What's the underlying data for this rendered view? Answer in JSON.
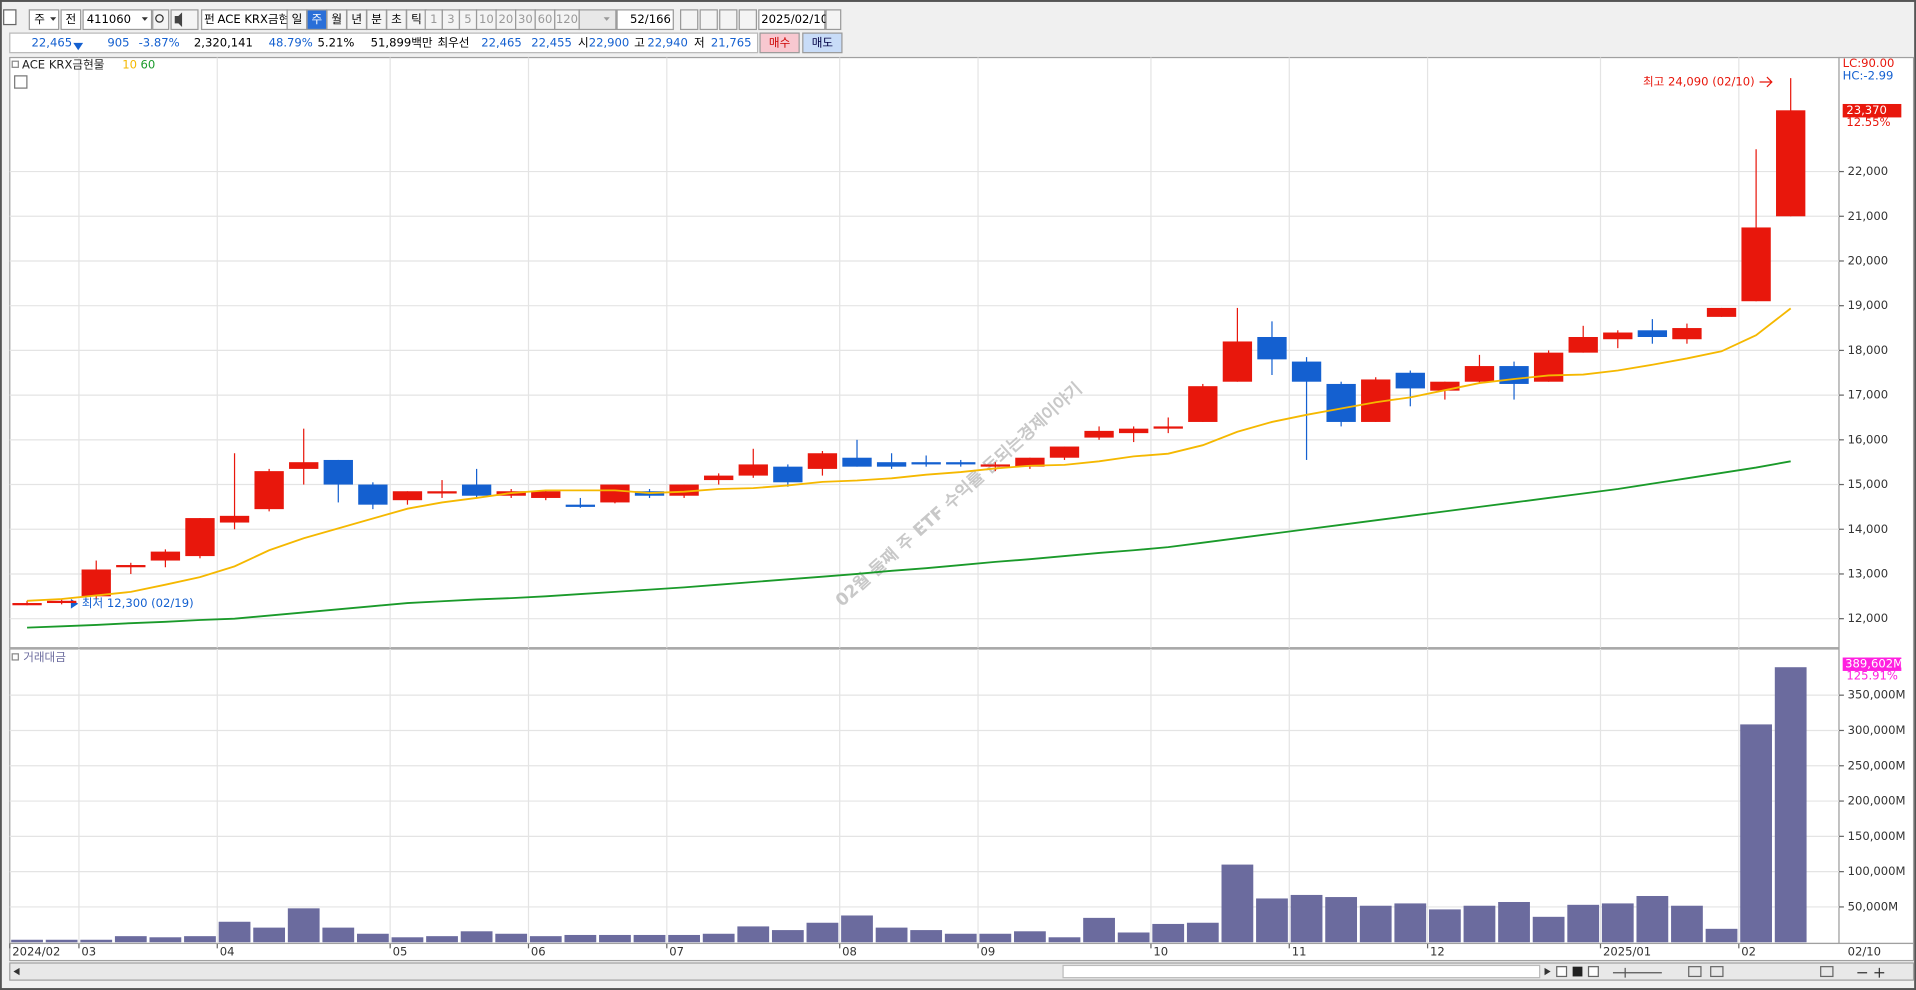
{
  "toolbar": {
    "market": "주",
    "all": "전",
    "code": "411060",
    "fund_tag": "펀",
    "name": "ACE KRX금현",
    "periods": [
      "일",
      "주",
      "월",
      "년",
      "분",
      "초",
      "틱"
    ],
    "selected_period": "주",
    "intervals": [
      "1",
      "3",
      "5",
      "10",
      "20",
      "30",
      "60",
      "120"
    ],
    "count": "52/166",
    "date": "2025/02/10"
  },
  "quote": {
    "price": "22,465",
    "change": "905",
    "change_pct": "-3.87%",
    "volume": "2,320,141",
    "volume_ratio": "48.79%",
    "turnover": "5.21%",
    "amount": "51,899백만",
    "best_label": "최우선",
    "ask": "22,465",
    "bid": "22,455",
    "open_label": "시",
    "open": "22,900",
    "high_label": "고",
    "high": "22,940",
    "low_label": "저",
    "low": "21,765",
    "buy": "매수",
    "sell": "매도"
  },
  "chart_data": [
    {
      "type": "candlestick",
      "title": "ACE KRX금현물",
      "up_color": "#e8170c",
      "down_color": "#1460d0",
      "categories": [
        "2024/02",
        null,
        "03",
        null,
        null,
        null,
        "04",
        null,
        null,
        null,
        null,
        "05",
        null,
        null,
        null,
        "06",
        null,
        null,
        null,
        "07",
        null,
        null,
        null,
        null,
        "08",
        null,
        null,
        null,
        "09",
        null,
        null,
        null,
        null,
        "10",
        null,
        null,
        null,
        "11",
        null,
        null,
        null,
        "12",
        null,
        null,
        null,
        null,
        "2025/01",
        null,
        null,
        null,
        "02",
        "02/10"
      ],
      "open": [
        12300,
        12350,
        12500,
        13150,
        13300,
        13400,
        14150,
        14450,
        15350,
        15550,
        15000,
        14650,
        14800,
        15000,
        14750,
        14700,
        14550,
        14600,
        14850,
        14750,
        15100,
        15200,
        15400,
        15350,
        15600,
        15500,
        15500,
        15500,
        15400,
        15400,
        15600,
        16050,
        16150,
        16250,
        16400,
        17300,
        18300,
        17750,
        17250,
        16400,
        17500,
        17100,
        17300,
        17650,
        17300,
        17950,
        18250,
        18450,
        18250,
        18750,
        19100,
        21000
      ],
      "high": [
        12400,
        12450,
        13300,
        13250,
        13550,
        14250,
        15700,
        15350,
        16250,
        15550,
        15050,
        14850,
        15100,
        15350,
        14900,
        14880,
        14700,
        15000,
        14900,
        15000,
        15250,
        15800,
        15450,
        15750,
        16000,
        15700,
        15650,
        15550,
        15500,
        15600,
        15850,
        16300,
        16300,
        16500,
        17250,
        18950,
        18650,
        17850,
        17300,
        17400,
        17550,
        17300,
        17900,
        17750,
        18000,
        18550,
        18450,
        18700,
        18600,
        18950,
        22500,
        24090
      ],
      "low": [
        12300,
        12320,
        12450,
        13000,
        13150,
        13350,
        14000,
        14400,
        15000,
        14600,
        14450,
        14550,
        14700,
        14700,
        14700,
        14650,
        14480,
        14580,
        14700,
        14700,
        15000,
        15150,
        14950,
        15200,
        15400,
        15350,
        15400,
        15400,
        15300,
        15350,
        15550,
        16000,
        15950,
        16150,
        16400,
        17300,
        17450,
        15550,
        16300,
        16400,
        16750,
        16900,
        17250,
        16900,
        17300,
        17950,
        18050,
        18150,
        18150,
        18750,
        19100,
        21000
      ],
      "close": [
        12350,
        12400,
        13100,
        13200,
        13500,
        14250,
        14300,
        15300,
        15500,
        15000,
        14550,
        14850,
        14850,
        14750,
        14850,
        14850,
        14500,
        15000,
        14750,
        15000,
        15200,
        15450,
        15050,
        15700,
        15400,
        15400,
        15450,
        15450,
        15450,
        15600,
        15850,
        16200,
        16250,
        16300,
        17200,
        18200,
        17800,
        17300,
        16400,
        17350,
        17150,
        17300,
        17650,
        17250,
        17950,
        18300,
        18400,
        18300,
        18500,
        18950,
        20750,
        23370
      ],
      "series": [
        {
          "name": "10",
          "color": "#f5b800",
          "values": [
            12400,
            12440,
            12520,
            12600,
            12760,
            12930,
            13170,
            13530,
            13800,
            14020,
            14240,
            14460,
            14600,
            14700,
            14810,
            14870,
            14870,
            14870,
            14810,
            14840,
            14900,
            14920,
            14980,
            15060,
            15090,
            15140,
            15220,
            15280,
            15360,
            15420,
            15440,
            15520,
            15630,
            15690,
            15880,
            16180,
            16400,
            16560,
            16700,
            16840,
            16950,
            17110,
            17270,
            17360,
            17440,
            17460,
            17550,
            17680,
            17820,
            17980,
            18340,
            18940
          ]
        },
        {
          "name": "60",
          "color": "#1a9a2a",
          "values": [
            11800,
            11830,
            11860,
            11900,
            11930,
            11970,
            12000,
            12070,
            12140,
            12210,
            12280,
            12350,
            12390,
            12430,
            12460,
            12500,
            12550,
            12600,
            12650,
            12700,
            12760,
            12820,
            12880,
            12940,
            13000,
            13070,
            13130,
            13200,
            13270,
            13330,
            13400,
            13470,
            13530,
            13600,
            13700,
            13800,
            13900,
            14000,
            14100,
            14200,
            14300,
            14400,
            14500,
            14600,
            14700,
            14800,
            14900,
            15020,
            15140,
            15260,
            15380,
            15520
          ]
        }
      ],
      "ylim": [
        11350,
        24550
      ],
      "yticks": [
        {
          "value": 12000,
          "label": "12,000"
        },
        {
          "value": 13000,
          "label": "13,000"
        },
        {
          "value": 14000,
          "label": "14,000"
        },
        {
          "value": 15000,
          "label": "15,000"
        },
        {
          "value": 16000,
          "label": "16,000"
        },
        {
          "value": 17000,
          "label": "17,000"
        },
        {
          "value": 18000,
          "label": "18,000"
        },
        {
          "value": 19000,
          "label": "19,000"
        },
        {
          "value": 20000,
          "label": "20,000"
        },
        {
          "value": 21000,
          "label": "21,000"
        },
        {
          "value": 22000,
          "label": "22,000"
        }
      ],
      "grid": true,
      "high_note": "최고 24,090 (02/10)",
      "low_note": "최저 12,300 (02/19)",
      "lc": "LC:90.00",
      "hc": "HC:-2.99",
      "last_label": "23,370",
      "last_pct": "12.55%",
      "watermark": "02월 둘째 주 ETF 수익률 돈되는경제이야기"
    },
    {
      "type": "bar",
      "title": "거래대금",
      "color": "#6b6b9e",
      "values": [
        3500,
        3500,
        3500,
        8600,
        7000,
        8600,
        29000,
        20700,
        48000,
        20700,
        12000,
        7000,
        8600,
        15500,
        12000,
        8600,
        10300,
        10300,
        10300,
        10300,
        12000,
        22400,
        17200,
        27600,
        37900,
        20700,
        17200,
        12000,
        12000,
        15500,
        7000,
        34500,
        13800,
        25900,
        27600,
        110000,
        62000,
        67000,
        64000,
        51700,
        55000,
        46500,
        51700,
        57000,
        36000,
        53000,
        55000,
        65500,
        51700,
        19000,
        308600,
        389602
      ],
      "ylim": [
        0,
        412000
      ],
      "yticks": [
        {
          "value": 50000,
          "label": "50,000M"
        },
        {
          "value": 100000,
          "label": "100,000M"
        },
        {
          "value": 150000,
          "label": "150,000M"
        },
        {
          "value": 200000,
          "label": "200,000M"
        },
        {
          "value": 250000,
          "label": "250,000M"
        },
        {
          "value": 300000,
          "label": "300,000M"
        },
        {
          "value": 350000,
          "label": "350,000M"
        }
      ],
      "grid": true,
      "last_label": "389,602M",
      "last_pct": "125.91%"
    }
  ]
}
